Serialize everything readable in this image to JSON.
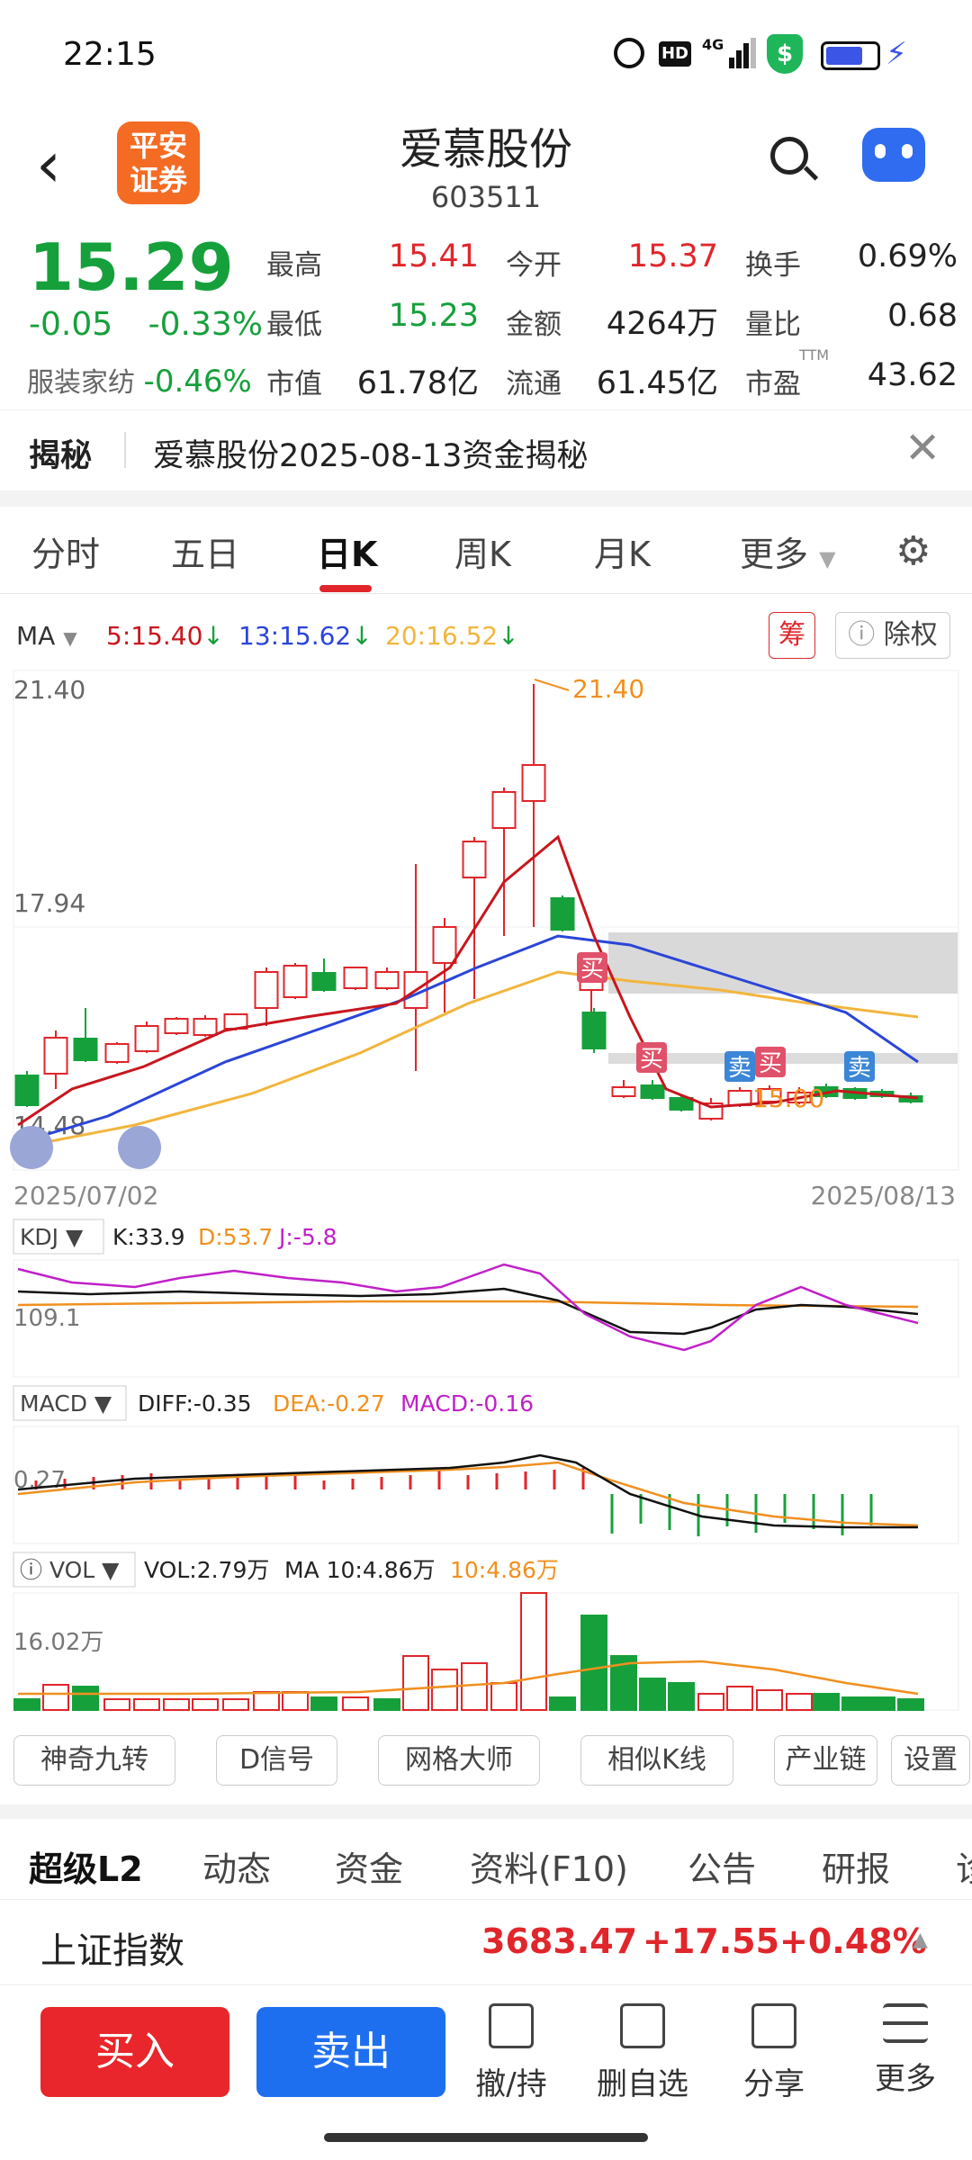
{
  "status": {
    "time": "22:15",
    "hd": "HD",
    "net": "4G"
  },
  "header": {
    "back_icon": "back-icon",
    "logo_text": [
      "平安",
      "证券"
    ],
    "title": "爱慕股份",
    "code": "603511"
  },
  "quote": {
    "price": "15.29",
    "change": "-0.05",
    "change_pct": "-0.33%",
    "industry_label": "服装家纺",
    "industry_pct": "-0.46%",
    "fields": [
      {
        "label": "最高",
        "value": "15.41"
      },
      {
        "label": "今开",
        "value": "15.37"
      },
      {
        "label": "换手",
        "value": "0.69%"
      },
      {
        "label": "最低",
        "value": "15.23"
      },
      {
        "label": "金额",
        "value": "4264万"
      },
      {
        "label": "量比",
        "value": "0.68"
      },
      {
        "label": "市值",
        "value": "61.78亿"
      },
      {
        "label": "流通",
        "value": "61.45亿"
      },
      {
        "label": "市盈",
        "value": "43.62",
        "sup": "TTM"
      }
    ]
  },
  "reveal": {
    "label": "揭秘",
    "text": "爱慕股份2025-08-13资金揭秘"
  },
  "tabs": [
    "分时",
    "五日",
    "日K",
    "周K",
    "月K",
    "更多"
  ],
  "ma": {
    "label": "MA",
    "ma5": "5:15.40",
    "ma13": "13:15.62",
    "ma20": "20:16.52",
    "chip": "筹",
    "exright": "除权"
  },
  "kline": {
    "ticks": [
      "21.40",
      "17.94",
      "14.48"
    ],
    "high_label": "21.40",
    "low_label": "15.00",
    "date_start": "2025/07/02",
    "date_end": "2025/08/13",
    "signals": [
      {
        "type": "买",
        "text": "买"
      },
      {
        "type": "买",
        "text": "买"
      },
      {
        "type": "卖",
        "text": "卖"
      },
      {
        "type": "买",
        "text": "买"
      },
      {
        "type": "卖",
        "text": "卖"
      }
    ]
  },
  "kdj": {
    "label": "KDJ",
    "k": "K:33.9",
    "d": "D:53.7",
    "j": "J:-5.8",
    "tick": "109.1"
  },
  "macd": {
    "label": "MACD",
    "diff": "DIFF:-0.35",
    "dea": "DEA:-0.27",
    "macd": "MACD:-0.16",
    "tick": "0.27"
  },
  "vol": {
    "label": "VOL",
    "vol": "VOL:2.79万",
    "ma10": "MA 10:4.86万",
    "ma10b": "10:4.86万",
    "tick": "16.02万"
  },
  "features": [
    "神奇九转",
    "D信号",
    "网格大师",
    "相似K线",
    "产业链",
    "设置"
  ],
  "bottom_tabs": [
    "超级L2",
    "动态",
    "资金",
    "资料(F10)",
    "公告",
    "研报",
    "诊"
  ],
  "index": {
    "name": "上证指数",
    "value": "3683.47",
    "change": "+17.55",
    "pct": "+0.48%"
  },
  "actions": {
    "buy": "买入",
    "sell": "卖出",
    "items": [
      "撤/持",
      "删自选",
      "分享",
      "更多"
    ]
  },
  "colors": {
    "up": "#e0262b",
    "down": "#16a03b",
    "ma5": "#c8161d",
    "ma13": "#2a45d8",
    "ma20": "#f2b53c"
  }
}
